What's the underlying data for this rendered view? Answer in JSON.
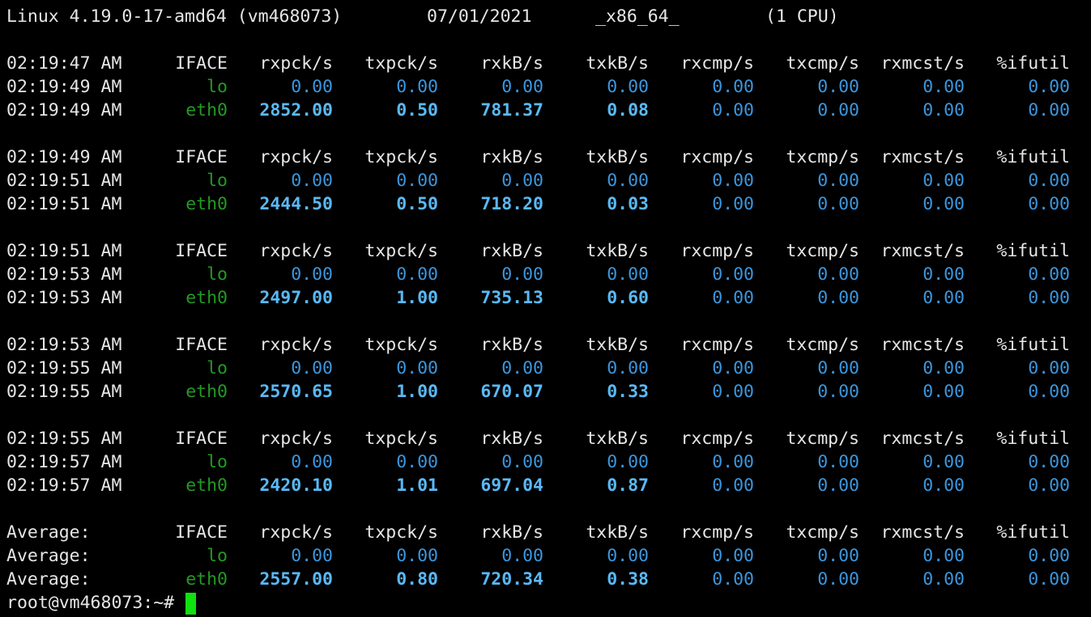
{
  "system_line": {
    "kernel": "Linux 4.19.0-17-amd64 (vm468073)",
    "date": "07/01/2021",
    "arch": "_x86_64_",
    "cpus": "(1 CPU)"
  },
  "blocks": [
    {
      "header": [
        "02:19:47 AM",
        "IFACE",
        "rxpck/s",
        "txpck/s",
        "rxkB/s",
        "txkB/s",
        "rxcmp/s",
        "txcmp/s",
        "rxmcst/s",
        "%ifutil"
      ],
      "rows": [
        [
          "02:19:49 AM",
          "lo",
          "0.00",
          "0.00",
          "0.00",
          "0.00",
          "0.00",
          "0.00",
          "0.00",
          "0.00"
        ],
        [
          "02:19:49 AM",
          "eth0",
          "2852.00",
          "0.50",
          "781.37",
          "0.08",
          "0.00",
          "0.00",
          "0.00",
          "0.00"
        ]
      ]
    },
    {
      "header": [
        "02:19:49 AM",
        "IFACE",
        "rxpck/s",
        "txpck/s",
        "rxkB/s",
        "txkB/s",
        "rxcmp/s",
        "txcmp/s",
        "rxmcst/s",
        "%ifutil"
      ],
      "rows": [
        [
          "02:19:51 AM",
          "lo",
          "0.00",
          "0.00",
          "0.00",
          "0.00",
          "0.00",
          "0.00",
          "0.00",
          "0.00"
        ],
        [
          "02:19:51 AM",
          "eth0",
          "2444.50",
          "0.50",
          "718.20",
          "0.03",
          "0.00",
          "0.00",
          "0.00",
          "0.00"
        ]
      ]
    },
    {
      "header": [
        "02:19:51 AM",
        "IFACE",
        "rxpck/s",
        "txpck/s",
        "rxkB/s",
        "txkB/s",
        "rxcmp/s",
        "txcmp/s",
        "rxmcst/s",
        "%ifutil"
      ],
      "rows": [
        [
          "02:19:53 AM",
          "lo",
          "0.00",
          "0.00",
          "0.00",
          "0.00",
          "0.00",
          "0.00",
          "0.00",
          "0.00"
        ],
        [
          "02:19:53 AM",
          "eth0",
          "2497.00",
          "1.00",
          "735.13",
          "0.60",
          "0.00",
          "0.00",
          "0.00",
          "0.00"
        ]
      ]
    },
    {
      "header": [
        "02:19:53 AM",
        "IFACE",
        "rxpck/s",
        "txpck/s",
        "rxkB/s",
        "txkB/s",
        "rxcmp/s",
        "txcmp/s",
        "rxmcst/s",
        "%ifutil"
      ],
      "rows": [
        [
          "02:19:55 AM",
          "lo",
          "0.00",
          "0.00",
          "0.00",
          "0.00",
          "0.00",
          "0.00",
          "0.00",
          "0.00"
        ],
        [
          "02:19:55 AM",
          "eth0",
          "2570.65",
          "1.00",
          "670.07",
          "0.33",
          "0.00",
          "0.00",
          "0.00",
          "0.00"
        ]
      ]
    },
    {
      "header": [
        "02:19:55 AM",
        "IFACE",
        "rxpck/s",
        "txpck/s",
        "rxkB/s",
        "txkB/s",
        "rxcmp/s",
        "txcmp/s",
        "rxmcst/s",
        "%ifutil"
      ],
      "rows": [
        [
          "02:19:57 AM",
          "lo",
          "0.00",
          "0.00",
          "0.00",
          "0.00",
          "0.00",
          "0.00",
          "0.00",
          "0.00"
        ],
        [
          "02:19:57 AM",
          "eth0",
          "2420.10",
          "1.01",
          "697.04",
          "0.87",
          "0.00",
          "0.00",
          "0.00",
          "0.00"
        ]
      ]
    },
    {
      "header": [
        "Average:",
        "IFACE",
        "rxpck/s",
        "txpck/s",
        "rxkB/s",
        "txkB/s",
        "rxcmp/s",
        "txcmp/s",
        "rxmcst/s",
        "%ifutil"
      ],
      "rows": [
        [
          "Average:",
          "lo",
          "0.00",
          "0.00",
          "0.00",
          "0.00",
          "0.00",
          "0.00",
          "0.00",
          "0.00"
        ],
        [
          "Average:",
          "eth0",
          "2557.00",
          "0.80",
          "720.34",
          "0.38",
          "0.00",
          "0.00",
          "0.00",
          "0.00"
        ]
      ]
    }
  ],
  "prompt": "root@vm468073:~#"
}
